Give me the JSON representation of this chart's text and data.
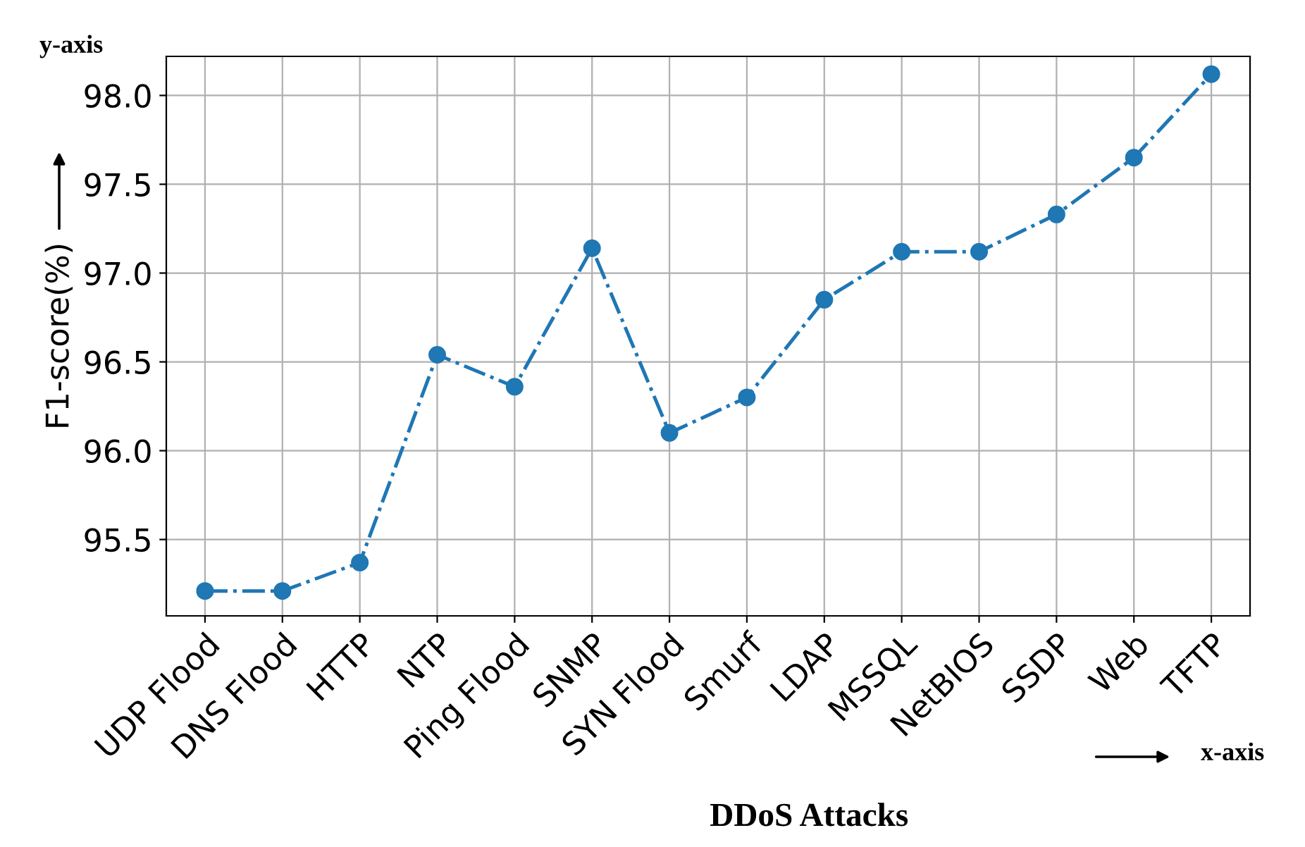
{
  "chart_data": {
    "type": "line",
    "xlabel": "DDoS Attacks",
    "ylabel": "F1-score(%)",
    "categories": [
      "UDP Flood",
      "DNS Flood",
      "HTTP",
      "NTP",
      "Ping Flood",
      "SNMP",
      "SYN Flood",
      "Smurf",
      "LDAP",
      "MSSQL",
      "NetBIOS",
      "SSDP",
      "Web",
      "TFTP"
    ],
    "series": [
      {
        "color": "#1f77b4",
        "values": [
          95.21,
          95.21,
          95.37,
          96.54,
          96.36,
          97.14,
          96.1,
          96.3,
          96.85,
          97.12,
          97.12,
          97.33,
          97.65,
          98.12
        ]
      }
    ],
    "ylim": [
      95.07,
      98.22
    ],
    "yticks": [
      95.5,
      {
        "value": 96,
        "label": "96.0"
      },
      96.5,
      {
        "value": 97,
        "label": "97.0"
      },
      97.5,
      {
        "value": 98,
        "label": "98.0"
      }
    ],
    "grid": true,
    "marker": "circle",
    "line_style": "dashdot",
    "annotations": [
      "y-axis",
      "x-axis"
    ]
  }
}
